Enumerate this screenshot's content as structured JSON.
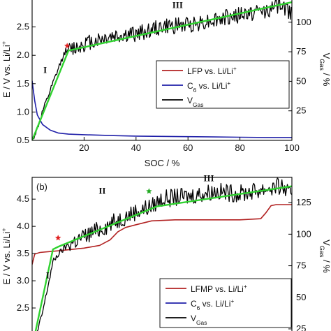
{
  "chart_data": [
    {
      "type": "line",
      "panel_label": "",
      "xlabel": "SOC / %",
      "ylabel_left": {
        "main": "E / V vs. Li/Li",
        "sup": "+"
      },
      "ylabel_right": {
        "main": "V",
        "sub": "Gas",
        "unit": " / %"
      },
      "xlim": [
        0,
        100
      ],
      "ylim_left": [
        0.5,
        3.0
      ],
      "ylim_right": [
        0,
        120
      ],
      "x_ticks": [
        20,
        40,
        60,
        80,
        100
      ],
      "y_ticks_left": [
        0.5,
        1.0,
        1.5,
        2.0,
        2.5
      ],
      "y_ticks_right": [
        25,
        50,
        75,
        100
      ],
      "regions": [
        "I",
        "III"
      ],
      "marker": "*",
      "legend": {
        "position": "center-right",
        "entries": [
          {
            "main": "LFP vs. Li/Li",
            "sup": "+",
            "sub": "",
            "color": "#b22222"
          },
          {
            "main": "C",
            "sub": "6",
            "after": " vs. Li/Li",
            "sup": "+",
            "color": "#1f1fa8"
          },
          {
            "main": "V",
            "sub": "Gas",
            "after": "",
            "sup": "",
            "color": "#000000"
          }
        ]
      },
      "series": [
        {
          "color": "#1f1fa8",
          "axis": "left",
          "x": [
            0,
            1,
            2,
            4,
            7,
            10,
            14,
            20,
            30,
            40,
            50,
            60,
            70,
            80,
            90,
            100
          ],
          "y": [
            1.55,
            1.2,
            0.95,
            0.78,
            0.68,
            0.63,
            0.61,
            0.6,
            0.585,
            0.575,
            0.57,
            0.565,
            0.56,
            0.555,
            0.55,
            0.55
          ]
        },
        {
          "color": "#000000",
          "axis": "right",
          "x": [
            0,
            2,
            4,
            6,
            8,
            10,
            12,
            13,
            14,
            16,
            20,
            30,
            40,
            50,
            60,
            70,
            80,
            90,
            96,
            98,
            100
          ],
          "y": [
            0,
            10,
            24,
            36,
            48,
            60,
            72,
            76,
            76,
            78,
            82,
            88,
            90,
            96,
            98,
            102,
            106,
            110,
            115,
            110,
            108
          ]
        },
        {
          "color": "#2fd22f",
          "axis": "right",
          "x": [
            0,
            14,
            100
          ],
          "y": [
            0,
            76,
            117
          ]
        }
      ],
      "star_points": [
        {
          "x": 13.5,
          "y": 80,
          "color": "#e02020"
        }
      ]
    },
    {
      "type": "line",
      "panel_label": "(b)",
      "xlabel": "",
      "ylabel_left": {
        "main": "E / V vs. Li/Li",
        "sup": "+"
      },
      "ylabel_right": {
        "main": "V",
        "sub": "Gas",
        "unit": " / %"
      },
      "xlim": [
        0,
        100
      ],
      "ylim_left": [
        2.0,
        4.9
      ],
      "ylim_right": [
        20,
        145
      ],
      "x_ticks": [],
      "y_ticks_left": [
        2.5,
        3.0,
        3.5,
        4.0,
        4.5
      ],
      "y_ticks_right": [
        25,
        50,
        75,
        100,
        125
      ],
      "regions": [
        "I",
        "II",
        "III"
      ],
      "marker": "*",
      "legend": {
        "position": "bottom-right",
        "entries": [
          {
            "main": "LFMP vs. Li/Li",
            "sup": "+",
            "sub": "",
            "color": "#b22222"
          },
          {
            "main": "C",
            "sub": "6",
            "after": " vs. Li/Li",
            "sup": "+",
            "color": "#1f1fa8"
          },
          {
            "main": "V",
            "sub": "Gas",
            "after": "",
            "sup": "",
            "color": "#000000"
          }
        ]
      },
      "series": [
        {
          "color": "#b22222",
          "axis": "left",
          "x": [
            0,
            1,
            3,
            10,
            20,
            26,
            30,
            33,
            36,
            40,
            46,
            55,
            70,
            80,
            88,
            90,
            92,
            94,
            100
          ],
          "y": [
            3.3,
            3.49,
            3.52,
            3.55,
            3.6,
            3.65,
            3.75,
            3.9,
            3.98,
            4.03,
            4.1,
            4.12,
            4.12,
            4.12,
            4.14,
            4.25,
            4.38,
            4.4,
            4.4
          ]
        },
        {
          "color": "#000000",
          "axis": "right",
          "x": [
            2,
            4,
            6,
            8,
            10,
            12,
            14,
            16,
            20,
            24,
            30,
            36,
            40,
            46,
            50,
            60,
            70,
            80,
            90,
            96,
            98,
            100
          ],
          "y": [
            22,
            38,
            58,
            78,
            84,
            88,
            92,
            94,
            98,
            102,
            108,
            114,
            118,
            122,
            128,
            130,
            134,
            132,
            136,
            138,
            134,
            128
          ]
        },
        {
          "color": "#2fd22f",
          "axis": "right",
          "x": [
            1,
            8,
            10,
            48,
            100
          ],
          "y": [
            20,
            88,
            90,
            122,
            138
          ]
        }
      ],
      "star_points": [
        {
          "x": 10,
          "y": 97,
          "color": "#e02020"
        },
        {
          "x": 45,
          "y": 134,
          "color": "#22aa22"
        }
      ]
    }
  ]
}
